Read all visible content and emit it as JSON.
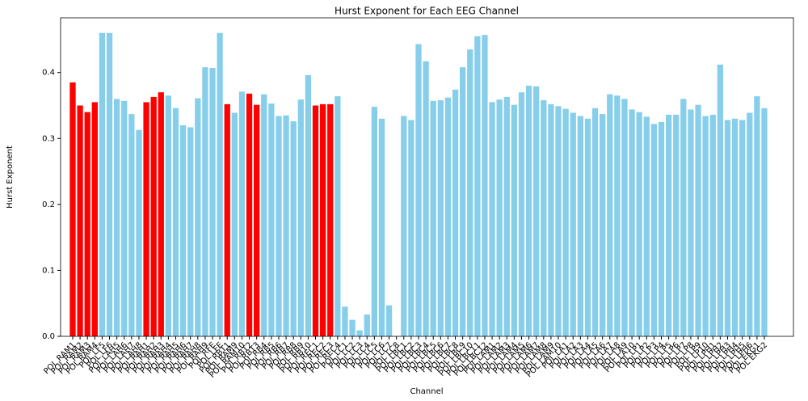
{
  "chart_data": {
    "type": "bar",
    "title": "Hurst Exponent for Each EEG Channel",
    "x_label": "Channel",
    "y_label": "Hurst Exponent",
    "categories": [
      "POL RAM1",
      "POL RAM2",
      "POL RAM3",
      "POL RAM4",
      "POL LF5",
      "POL LF6",
      "POL LAH5",
      "POL LAH6",
      "POL LAH7",
      "POL LAH8",
      "POL RAH1",
      "POL RAH2",
      "POL RAH3",
      "POL RAH4",
      "POL RAH5",
      "POL RAH6",
      "POL RAH7",
      "POL RAH8",
      "POL RAH9",
      "POL RFE",
      "POL LFE",
      "POL RBT1",
      "POL RAM9",
      "POL RAM10",
      "POL RBT2",
      "POL RBT3",
      "POL RB4",
      "POL RB5",
      "POL RB6",
      "POL RB7",
      "POL RB8",
      "POL RB9",
      "POL RB10",
      "POL REC1",
      "POL REC2",
      "POL REC3",
      "POL REC4",
      "POL LC1",
      "POL LC2",
      "POL LC3",
      "POL LC4",
      "POL LC5",
      "POL LC6",
      "POL LC7",
      "POL LC8",
      "POL LBC1",
      "POL LBC2",
      "POL LBC3",
      "POL LBC4",
      "POL LBC5",
      "POL LBC6",
      "POL LBC7",
      "POL LBC8",
      "POL LBC9",
      "POL LBC10",
      "POL LBC11",
      "POL LBC12",
      "POL LAM1",
      "POL LAM2",
      "POL LAM3",
      "POL LAM4",
      "POL LAM5",
      "POL LAM6",
      "POL LAM7",
      "POL LAM8",
      "POL LAM9",
      "POL LAM10",
      "POL LA1",
      "POL LA2",
      "POL LA3",
      "POL LA4",
      "POL LA5",
      "POL LA6",
      "POL LA7",
      "POL LA8",
      "POL LA9",
      "POL LA10",
      "POL LP1",
      "POL LP2",
      "POL LP3",
      "POL LP4",
      "POL LP5",
      "POL LP6",
      "POL LP7",
      "POL LP8",
      "POL LP9",
      "POL LP10",
      "POL LPH1",
      "POL LPH2",
      "POL LPH3",
      "POL LPH4",
      "POL LPH5",
      "POL LPH6",
      "POL EKG1",
      "POL EKG2"
    ],
    "values": [
      0.385,
      0.35,
      0.34,
      0.355,
      0.46,
      0.46,
      0.36,
      0.357,
      0.337,
      0.313,
      0.355,
      0.363,
      0.37,
      0.365,
      0.346,
      0.32,
      0.317,
      0.361,
      0.408,
      0.407,
      0.46,
      0.352,
      0.339,
      0.371,
      0.368,
      0.351,
      0.367,
      0.353,
      0.334,
      0.335,
      0.326,
      0.359,
      0.396,
      0.35,
      0.352,
      0.352,
      0.364,
      0.045,
      0.025,
      0.009,
      0.033,
      0.348,
      0.33,
      0.047,
      0,
      0.334,
      0.328,
      0.443,
      0.417,
      0.357,
      0.358,
      0.362,
      0.374,
      0.408,
      0.435,
      0.455,
      0.457,
      0.355,
      0.359,
      0.363,
      0.351,
      0.37,
      0.38,
      0.379,
      0.358,
      0.352,
      0.349,
      0.345,
      0.339,
      0.334,
      0.33,
      0.346,
      0.337,
      0.367,
      0.365,
      0.36,
      0.344,
      0.34,
      0.333,
      0.322,
      0.325,
      0.336,
      0.336,
      0.36,
      0.344,
      0.351,
      0.334,
      0.336,
      0.412,
      0.328,
      0.33,
      0.328,
      0.339,
      0.364,
      0.346
    ],
    "colors": [
      "#ff0000",
      "#ff0000",
      "#ff0000",
      "#ff0000",
      "#87ceeb",
      "#87ceeb",
      "#87ceeb",
      "#87ceeb",
      "#87ceeb",
      "#87ceeb",
      "#ff0000",
      "#ff0000",
      "#ff0000",
      "#87ceeb",
      "#87ceeb",
      "#87ceeb",
      "#87ceeb",
      "#87ceeb",
      "#87ceeb",
      "#87ceeb",
      "#87ceeb",
      "#ff0000",
      "#87ceeb",
      "#87ceeb",
      "#ff0000",
      "#ff0000",
      "#87ceeb",
      "#87ceeb",
      "#87ceeb",
      "#87ceeb",
      "#87ceeb",
      "#87ceeb",
      "#87ceeb",
      "#ff0000",
      "#ff0000",
      "#ff0000",
      "#87ceeb",
      "#87ceeb",
      "#87ceeb",
      "#87ceeb",
      "#87ceeb",
      "#87ceeb",
      "#87ceeb",
      "#87ceeb",
      "#87ceeb",
      "#87ceeb",
      "#87ceeb",
      "#87ceeb",
      "#87ceeb",
      "#87ceeb",
      "#87ceeb",
      "#87ceeb",
      "#87ceeb",
      "#87ceeb",
      "#87ceeb",
      "#87ceeb",
      "#87ceeb",
      "#87ceeb",
      "#87ceeb",
      "#87ceeb",
      "#87ceeb",
      "#87ceeb",
      "#87ceeb",
      "#87ceeb",
      "#87ceeb",
      "#87ceeb",
      "#87ceeb",
      "#87ceeb",
      "#87ceeb",
      "#87ceeb",
      "#87ceeb",
      "#87ceeb",
      "#87ceeb",
      "#87ceeb",
      "#87ceeb",
      "#87ceeb",
      "#87ceeb",
      "#87ceeb",
      "#87ceeb",
      "#87ceeb",
      "#87ceeb",
      "#87ceeb",
      "#87ceeb",
      "#87ceeb",
      "#87ceeb",
      "#87ceeb",
      "#87ceeb",
      "#87ceeb",
      "#87ceeb",
      "#87ceeb",
      "#87ceeb",
      "#87ceeb",
      "#87ceeb",
      "#87ceeb",
      "#87ceeb"
    ],
    "ylim": [
      0,
      0.483
    ],
    "yticks": [
      {
        "value": 0,
        "label": "0.0"
      },
      0.1,
      0.2,
      0.3,
      0.4
    ]
  }
}
